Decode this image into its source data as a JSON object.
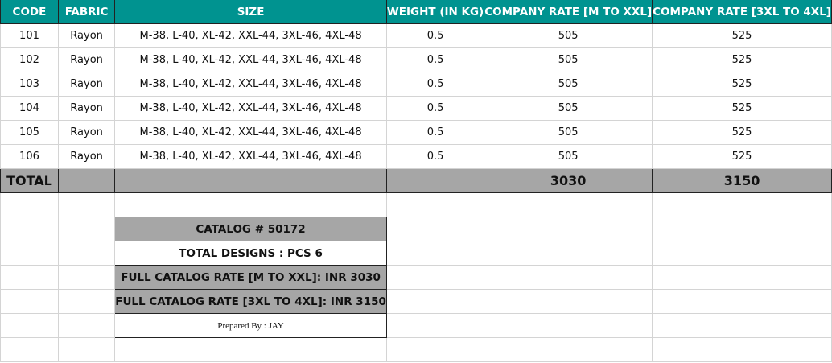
{
  "headers": [
    "CODE",
    "FABRIC",
    "SIZE",
    "WEIGHT (IN KG)",
    "COMPANY RATE [M TO XXL]",
    "COMPANY RATE [3XL TO 4XL]"
  ],
  "rows": [
    [
      "101",
      "Rayon",
      "M-38, L-40, XL-42, XXL-44, 3XL-46, 4XL-48",
      "0.5",
      "505",
      "525"
    ],
    [
      "102",
      "Rayon",
      "M-38, L-40, XL-42, XXL-44, 3XL-46, 4XL-48",
      "0.5",
      "505",
      "525"
    ],
    [
      "103",
      "Rayon",
      "M-38, L-40, XL-42, XXL-44, 3XL-46, 4XL-48",
      "0.5",
      "505",
      "525"
    ],
    [
      "104",
      "Rayon",
      "M-38, L-40, XL-42, XXL-44, 3XL-46, 4XL-48",
      "0.5",
      "505",
      "525"
    ],
    [
      "105",
      "Rayon",
      "M-38, L-40, XL-42, XXL-44, 3XL-46, 4XL-48",
      "0.5",
      "505",
      "525"
    ],
    [
      "106",
      "Rayon",
      "M-38, L-40, XL-42, XXL-44, 3XL-46, 4XL-48",
      "0.5",
      "505",
      "525"
    ]
  ],
  "total": {
    "label": "TOTAL",
    "rate_m_xxl": "3030",
    "rate_3xl_4xl": "3150"
  },
  "summary": {
    "catalog": "CATALOG # 50172",
    "designs": "TOTAL DESIGNS :  PCS 6",
    "rate1": "FULL CATALOG RATE [M TO XXL]: INR 3030",
    "rate2": "FULL CATALOG RATE [3XL TO 4XL]: INR 3150",
    "prepared": "Prepared By : JAY"
  },
  "colors": {
    "header": "#009390",
    "total": "#a6a6a6"
  }
}
